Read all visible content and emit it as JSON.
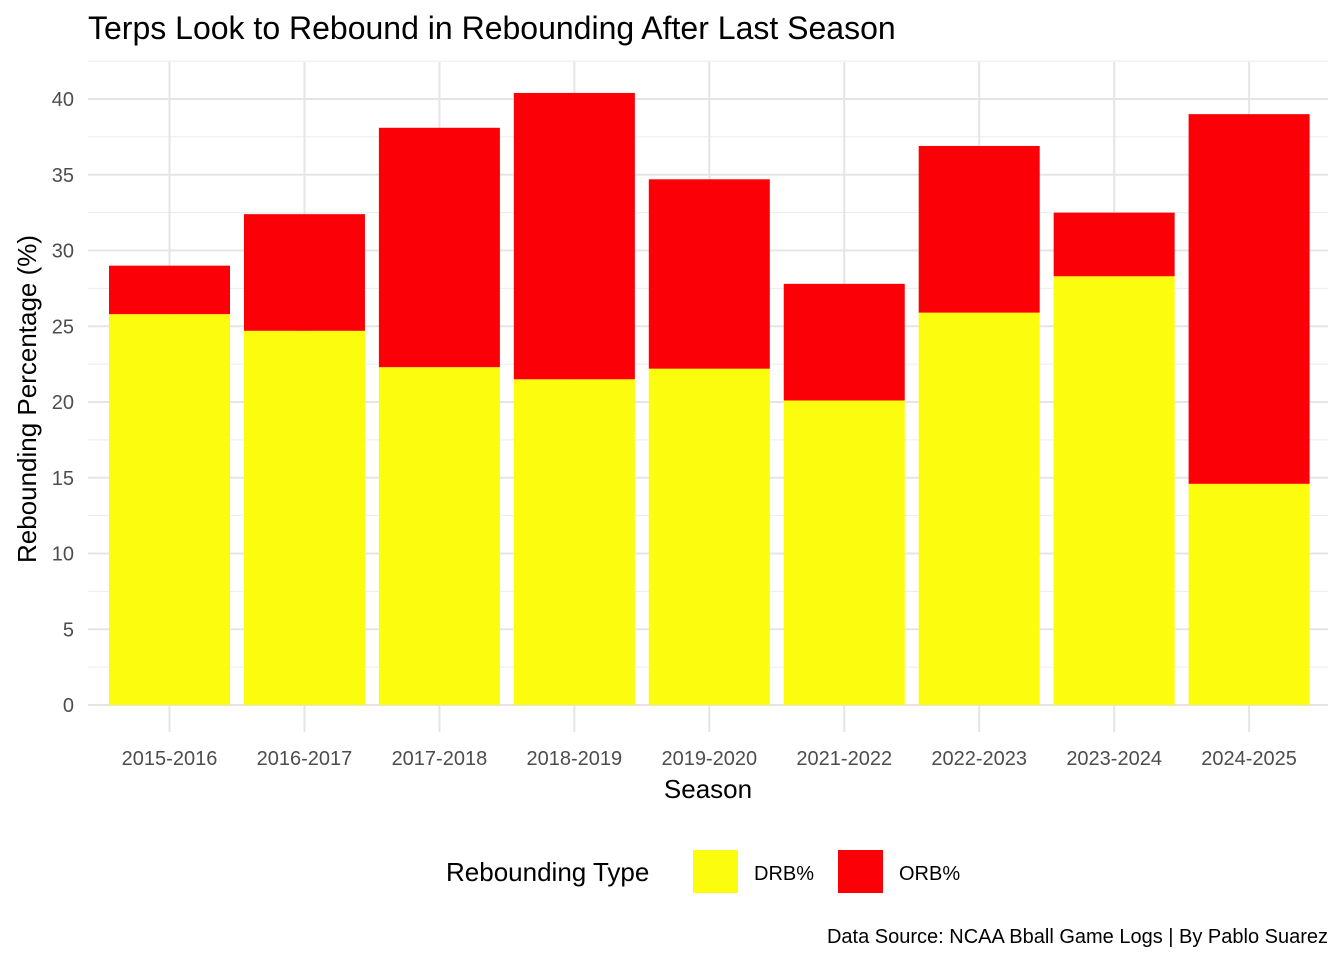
{
  "chart_data": {
    "type": "bar",
    "stacked": true,
    "title": "Terps Look to Rebound in Rebounding After Last Season",
    "xlabel": "Season",
    "ylabel": "Rebounding Percentage (%)",
    "categories": [
      "2015-2016",
      "2016-2017",
      "2017-2018",
      "2018-2019",
      "2019-2020",
      "2021-2022",
      "2022-2023",
      "2023-2024",
      "2024-2025"
    ],
    "series": [
      {
        "name": "DRB%",
        "color": "#fcfc0f",
        "values": [
          25.8,
          24.7,
          22.3,
          21.5,
          22.2,
          20.1,
          25.9,
          28.3,
          14.6
        ]
      },
      {
        "name": "ORB%",
        "color": "#fb0006",
        "values": [
          3.2,
          7.7,
          15.8,
          18.9,
          12.5,
          7.7,
          11.0,
          4.2,
          24.4
        ]
      }
    ],
    "ylim": [
      0,
      42
    ],
    "yticks": [
      0,
      5,
      10,
      15,
      20,
      25,
      30,
      35,
      40
    ],
    "grid": true,
    "legend": {
      "title": "Rebounding Type",
      "position": "bottom"
    },
    "caption": "Data Source: NCAA Bball Game Logs | By Pablo Suarez"
  }
}
